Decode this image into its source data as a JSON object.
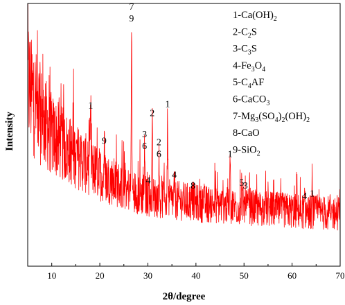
{
  "chart_data": {
    "type": "line",
    "xlabel": "2θ/degree",
    "ylabel": "Intensity",
    "xlim": [
      5,
      70
    ],
    "x_ticks": [
      10,
      20,
      30,
      40,
      50,
      60,
      70
    ],
    "series_color": "#ff0000",
    "y_tick_labels": "none",
    "grid": false,
    "legend_placement": "top-right",
    "legend": [
      {
        "parts": [
          [
            "1-Ca(OH)",
            ""
          ],
          [
            "2",
            "sub"
          ]
        ]
      },
      {
        "parts": [
          [
            "2-C",
            ""
          ],
          [
            "2",
            "sub"
          ],
          [
            "S",
            ""
          ]
        ]
      },
      {
        "parts": [
          [
            "3-C",
            ""
          ],
          [
            "3",
            "sub"
          ],
          [
            "S",
            ""
          ]
        ]
      },
      {
        "parts": [
          [
            "4-Fe",
            ""
          ],
          [
            "3",
            "sub"
          ],
          [
            "O",
            ""
          ],
          [
            "4",
            "sub"
          ]
        ]
      },
      {
        "parts": [
          [
            "5-C",
            ""
          ],
          [
            "4",
            "sub"
          ],
          [
            "AF",
            ""
          ]
        ]
      },
      {
        "parts": [
          [
            "6-CaCO",
            ""
          ],
          [
            "3",
            "sub"
          ]
        ]
      },
      {
        "parts": [
          [
            "7-Mg",
            ""
          ],
          [
            "3",
            "sub"
          ],
          [
            "(SO",
            ""
          ],
          [
            "4",
            "sub"
          ],
          [
            ")",
            ""
          ],
          [
            "2",
            "sub"
          ],
          [
            "(OH)",
            ""
          ],
          [
            "2",
            "sub"
          ]
        ]
      },
      {
        "parts": [
          [
            "8-CaO",
            ""
          ]
        ]
      },
      {
        "parts": [
          [
            "9-SiO",
            ""
          ],
          [
            "2",
            "sub"
          ]
        ]
      }
    ],
    "baseline": [
      [
        5,
        0.7
      ],
      [
        7,
        0.6
      ],
      [
        10,
        0.5
      ],
      [
        15,
        0.42
      ],
      [
        20,
        0.35
      ],
      [
        25,
        0.3
      ],
      [
        30,
        0.265
      ],
      [
        40,
        0.24
      ],
      [
        50,
        0.225
      ],
      [
        60,
        0.21
      ],
      [
        70,
        0.2
      ]
    ],
    "peaks": [
      {
        "x": 18.1,
        "y": 0.585,
        "labels": [
          "1"
        ]
      },
      {
        "x": 20.9,
        "y": 0.45,
        "labels": [
          "9"
        ]
      },
      {
        "x": 26.6,
        "y": 0.915,
        "labels": [
          "7",
          "9"
        ]
      },
      {
        "x": 29.3,
        "y": 0.43,
        "labels": [
          "3",
          "6"
        ]
      },
      {
        "x": 30.1,
        "y": 0.3,
        "labels": [
          "4"
        ]
      },
      {
        "x": 30.9,
        "y": 0.555,
        "labels": [
          "2"
        ]
      },
      {
        "x": 32.3,
        "y": 0.4,
        "labels": [
          "2",
          "6"
        ]
      },
      {
        "x": 34.1,
        "y": 0.59,
        "labels": [
          "1"
        ]
      },
      {
        "x": 35.5,
        "y": 0.32,
        "labels": [
          "4"
        ]
      },
      {
        "x": 39.4,
        "y": 0.28,
        "labels": [
          "8"
        ]
      },
      {
        "x": 47.1,
        "y": 0.4,
        "labels": [
          "1"
        ]
      },
      {
        "x": 49.5,
        "y": 0.29,
        "labels": [
          "5"
        ]
      },
      {
        "x": 50.3,
        "y": 0.28,
        "labels": [
          "3"
        ]
      },
      {
        "x": 62.6,
        "y": 0.24,
        "labels": [
          "4"
        ]
      },
      {
        "x": 64.2,
        "y": 0.25,
        "labels": [
          "1"
        ]
      }
    ]
  }
}
